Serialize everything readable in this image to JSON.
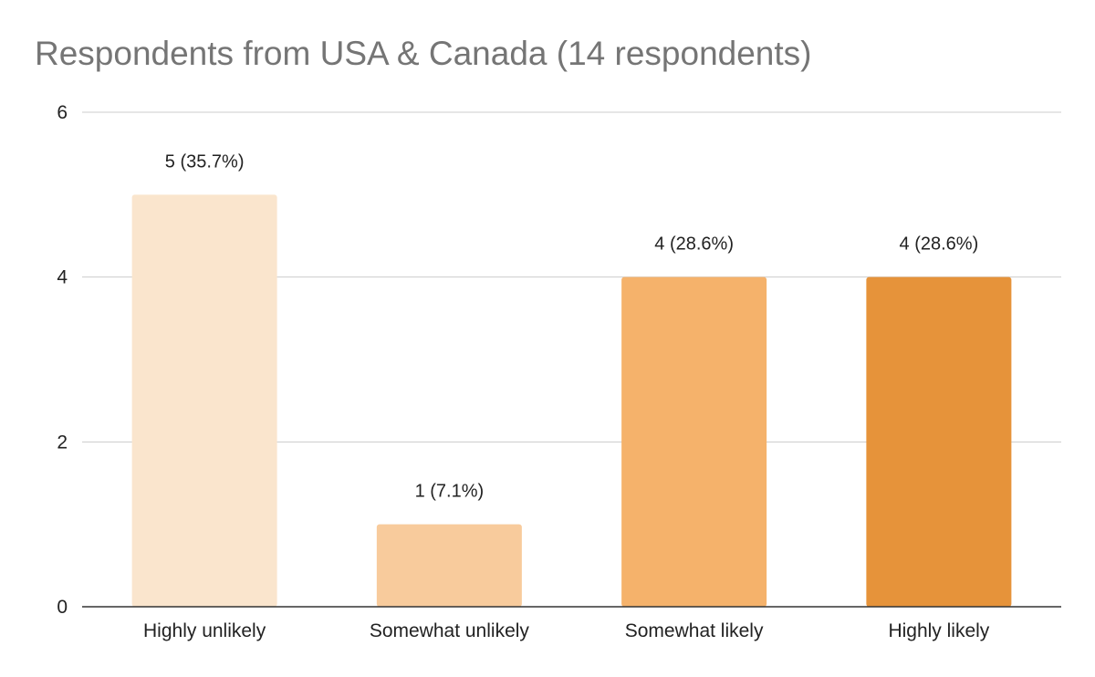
{
  "chart_data": {
    "type": "bar",
    "title": "Respondents from USA & Canada (14 respondents)",
    "xlabel": "",
    "ylabel": "",
    "categories": [
      "Highly unlikely",
      "Somewhat unlikely",
      "Somewhat likely",
      "Highly likely"
    ],
    "values": [
      5,
      1,
      4,
      4
    ],
    "data_labels": [
      "5 (35.7%)",
      "1 (7.1%)",
      "4 (28.6%)",
      "4 (28.6%)"
    ],
    "colors": [
      "#fae5cd",
      "#f8cb9c",
      "#f5b26b",
      "#e6933a"
    ],
    "ylim": [
      0,
      6
    ],
    "yticks": [
      0,
      2,
      4,
      6
    ],
    "grid": true,
    "legend": "none"
  }
}
